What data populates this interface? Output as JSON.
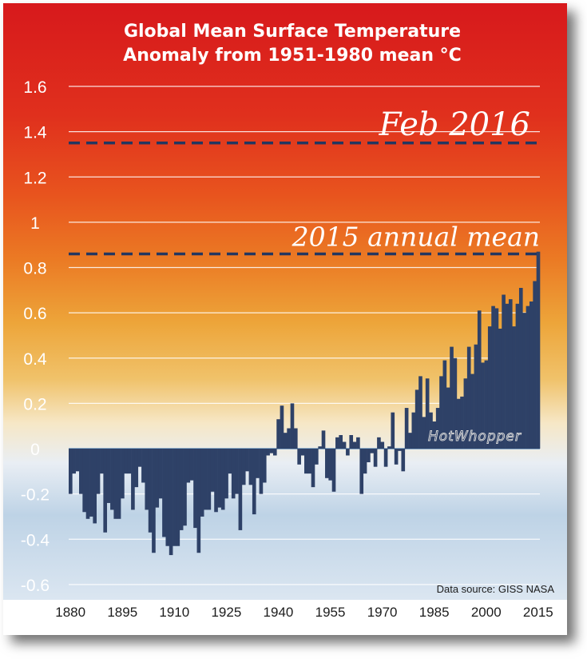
{
  "chart_data": {
    "type": "bar",
    "title": "Global Mean Surface Temperature",
    "subtitle": "Anomaly from 1951-1980 mean °C",
    "xlabel": "",
    "ylabel": "",
    "ylim": [
      -0.6,
      1.6
    ],
    "xlim": [
      1880,
      2015
    ],
    "y_ticks": [
      "1.6",
      "1.4",
      "1.2",
      "1",
      "0.8",
      "0.6",
      "0.4",
      "0.2",
      "0",
      "-0.2",
      "-0.4",
      "-0.6"
    ],
    "x_ticks": [
      "1880",
      "1895",
      "1910",
      "1925",
      "1940",
      "1955",
      "1970",
      "1985",
      "2000",
      "2015"
    ],
    "grid": true,
    "annotations": [
      {
        "label": "Feb 2016",
        "value": 1.35
      },
      {
        "label": "2015 annual mean",
        "value": 0.86
      }
    ],
    "source": "Data source: GISS NASA",
    "watermark": "HotWhopper",
    "colors": {
      "bars": "#2e4167",
      "reference_lines": "#233660",
      "gridlines": "#ffffff"
    },
    "years": [
      1880,
      1881,
      1882,
      1883,
      1884,
      1885,
      1886,
      1887,
      1888,
      1889,
      1890,
      1891,
      1892,
      1893,
      1894,
      1895,
      1896,
      1897,
      1898,
      1899,
      1900,
      1901,
      1902,
      1903,
      1904,
      1905,
      1906,
      1907,
      1908,
      1909,
      1910,
      1911,
      1912,
      1913,
      1914,
      1915,
      1916,
      1917,
      1918,
      1919,
      1920,
      1921,
      1922,
      1923,
      1924,
      1925,
      1926,
      1927,
      1928,
      1929,
      1930,
      1931,
      1932,
      1933,
      1934,
      1935,
      1936,
      1937,
      1938,
      1939,
      1940,
      1941,
      1942,
      1943,
      1944,
      1945,
      1946,
      1947,
      1948,
      1949,
      1950,
      1951,
      1952,
      1953,
      1954,
      1955,
      1956,
      1957,
      1958,
      1959,
      1960,
      1961,
      1962,
      1963,
      1964,
      1965,
      1966,
      1967,
      1968,
      1969,
      1970,
      1971,
      1972,
      1973,
      1974,
      1975,
      1976,
      1977,
      1978,
      1979,
      1980,
      1981,
      1982,
      1983,
      1984,
      1985,
      1986,
      1987,
      1988,
      1989,
      1990,
      1991,
      1992,
      1993,
      1994,
      1995,
      1996,
      1997,
      1998,
      1999,
      2000,
      2001,
      2002,
      2003,
      2004,
      2005,
      2006,
      2007,
      2008,
      2009,
      2010,
      2011,
      2012,
      2013,
      2014,
      2015
    ],
    "values": [
      -0.2,
      -0.11,
      -0.1,
      -0.2,
      -0.28,
      -0.31,
      -0.3,
      -0.33,
      -0.2,
      -0.11,
      -0.37,
      -0.24,
      -0.27,
      -0.31,
      -0.31,
      -0.22,
      -0.11,
      -0.11,
      -0.27,
      -0.17,
      -0.08,
      -0.15,
      -0.27,
      -0.37,
      -0.46,
      -0.26,
      -0.22,
      -0.39,
      -0.43,
      -0.47,
      -0.43,
      -0.43,
      -0.36,
      -0.34,
      -0.15,
      -0.14,
      -0.35,
      -0.46,
      -0.3,
      -0.27,
      -0.27,
      -0.19,
      -0.28,
      -0.26,
      -0.27,
      -0.22,
      -0.11,
      -0.22,
      -0.2,
      -0.36,
      -0.16,
      -0.1,
      -0.16,
      -0.29,
      -0.13,
      -0.2,
      -0.15,
      -0.03,
      -0.02,
      -0.03,
      0.13,
      0.19,
      0.07,
      0.09,
      0.2,
      0.09,
      -0.07,
      -0.03,
      -0.11,
      -0.11,
      -0.17,
      -0.07,
      0.01,
      0.08,
      -0.13,
      -0.14,
      -0.19,
      0.05,
      0.06,
      0.03,
      -0.03,
      0.06,
      0.03,
      0.05,
      -0.2,
      -0.11,
      -0.06,
      -0.02,
      -0.08,
      0.05,
      0.03,
      -0.08,
      0.01,
      0.16,
      -0.07,
      -0.01,
      -0.1,
      0.18,
      0.07,
      0.16,
      0.26,
      0.32,
      0.14,
      0.31,
      0.16,
      0.12,
      0.18,
      0.32,
      0.39,
      0.27,
      0.45,
      0.4,
      0.22,
      0.23,
      0.31,
      0.45,
      0.33,
      0.46,
      0.61,
      0.38,
      0.39,
      0.54,
      0.63,
      0.62,
      0.53,
      0.68,
      0.64,
      0.66,
      0.54,
      0.64,
      0.71,
      0.6,
      0.63,
      0.65,
      0.74,
      0.87
    ]
  }
}
